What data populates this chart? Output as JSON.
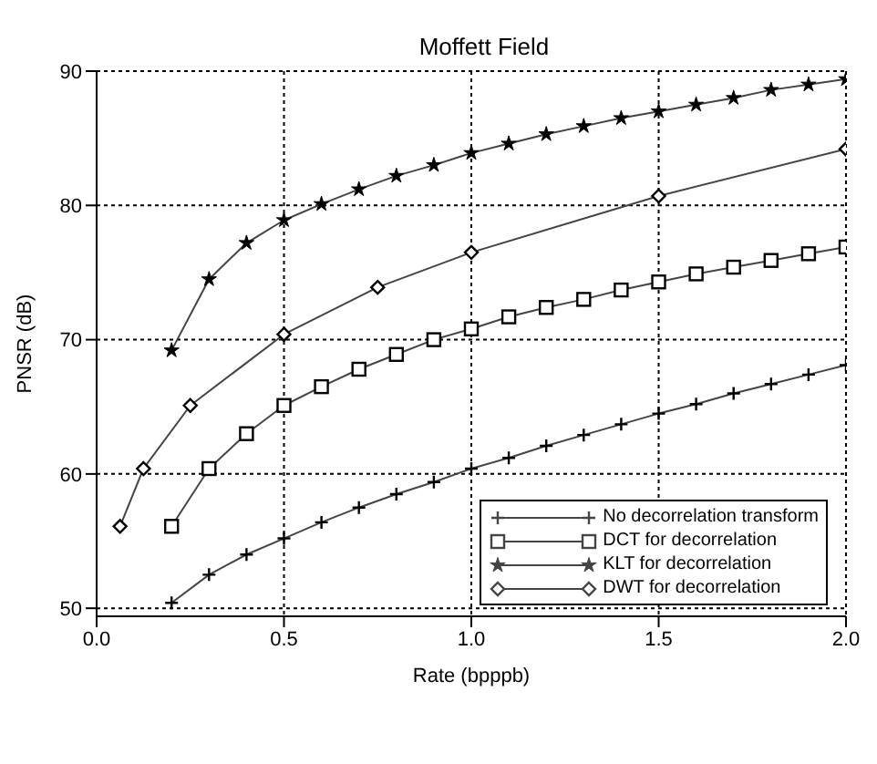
{
  "chart_data": {
    "type": "line",
    "title": "Moffett Field",
    "xlabel": "Rate (bpppb)",
    "ylabel": "PNSR (dB)",
    "xlim": [
      0,
      2
    ],
    "xticks": [
      {
        "value": 0,
        "label": "0.0"
      },
      0.5,
      {
        "value": 1,
        "label": "1.0"
      },
      1.5,
      {
        "value": 2,
        "label": "2.0"
      }
    ],
    "ylim": [
      49.4,
      90
    ],
    "yticks": [
      50,
      60,
      70,
      80,
      90
    ],
    "grid": true,
    "legend": "bottom right",
    "line_style": "solid",
    "series": [
      {
        "name": "No decorrelation transform",
        "color": "#444444",
        "marker": "cross",
        "x": [
          0.2,
          0.3,
          0.4,
          0.5,
          0.6,
          0.7,
          0.8,
          0.9,
          1.0,
          1.1,
          1.2,
          1.3,
          1.4,
          1.5,
          1.6,
          1.7,
          1.8,
          1.9,
          2.0
        ],
        "values": [
          50.4,
          52.5,
          54.0,
          55.2,
          56.4,
          57.5,
          58.5,
          59.4,
          60.4,
          61.2,
          62.1,
          62.9,
          63.7,
          64.5,
          65.2,
          66.0,
          66.7,
          67.4,
          68.1
        ]
      },
      {
        "name": "DCT for decorrelation",
        "color": "#444444",
        "marker": "square",
        "x": [
          0.2,
          0.3,
          0.4,
          0.5,
          0.6,
          0.7,
          0.8,
          0.9,
          1.0,
          1.1,
          1.2,
          1.3,
          1.4,
          1.5,
          1.6,
          1.7,
          1.8,
          1.9,
          2.0
        ],
        "values": [
          56.1,
          60.4,
          63.0,
          65.1,
          66.5,
          67.8,
          68.9,
          70.0,
          70.8,
          71.7,
          72.4,
          73.0,
          73.7,
          74.3,
          74.9,
          75.4,
          75.9,
          76.4,
          76.9
        ]
      },
      {
        "name": "KLT for decorrelation",
        "color": "#444444",
        "marker": "star",
        "x": [
          0.2,
          0.3,
          0.4,
          0.5,
          0.6,
          0.7,
          0.8,
          0.9,
          1.0,
          1.1,
          1.2,
          1.3,
          1.4,
          1.5,
          1.6,
          1.7,
          1.8,
          1.9,
          2.0
        ],
        "values": [
          69.2,
          74.5,
          77.2,
          78.9,
          80.1,
          81.2,
          82.2,
          83.0,
          83.9,
          84.6,
          85.3,
          85.9,
          86.5,
          87.0,
          87.5,
          88.0,
          88.6,
          89.0,
          89.4
        ]
      },
      {
        "name": "DWT for decorrelation",
        "color": "#444444",
        "marker": "diamond",
        "x": [
          0.0625,
          0.125,
          0.25,
          0.5,
          0.75,
          1.0,
          1.5,
          2.0
        ],
        "values": [
          56.1,
          60.4,
          65.1,
          70.4,
          73.9,
          76.5,
          80.7,
          84.2
        ]
      }
    ]
  }
}
